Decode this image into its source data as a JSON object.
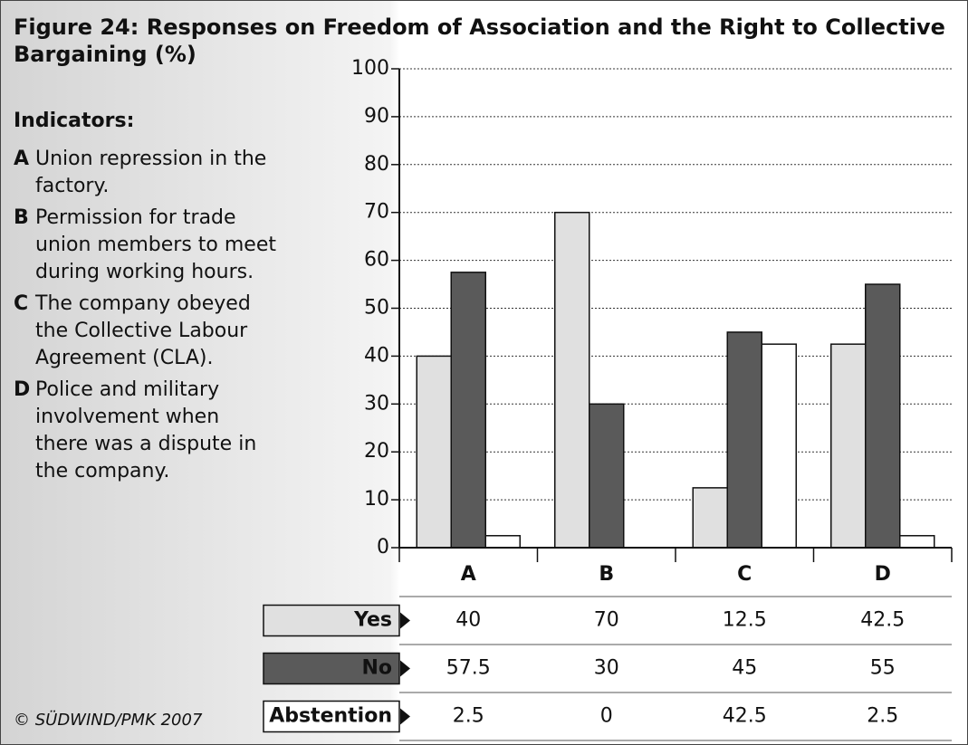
{
  "chart_data": {
    "type": "bar",
    "title": "Figure 24: Responses on Freedom of Association and the Right to Collective Bargaining (%)",
    "categories": [
      "A",
      "B",
      "C",
      "D"
    ],
    "series": [
      {
        "name": "Yes",
        "color": "#e0e0e0",
        "values": [
          40,
          70,
          12.5,
          42.5
        ]
      },
      {
        "name": "No",
        "color": "#5a5a5a",
        "values": [
          57.5,
          30,
          45,
          55
        ]
      },
      {
        "name": "Abstention",
        "color": "#ffffff",
        "values": [
          2.5,
          0,
          42.5,
          2.5
        ]
      }
    ],
    "ylim": [
      0,
      100
    ],
    "yticks": [
      0,
      10,
      20,
      30,
      40,
      50,
      60,
      70,
      80,
      90,
      100
    ],
    "grid": true
  },
  "indicators": {
    "heading": "Indicators:",
    "items": [
      {
        "letter": "A",
        "text": "Union repression in the factory."
      },
      {
        "letter": "B",
        "text": "Permission for trade union members to meet during working hours."
      },
      {
        "letter": "C",
        "text": "The company obeyed the Collective Labour Agreement (CLA)."
      },
      {
        "letter": "D",
        "text": "Police and military involvement when there was a dispute in the company."
      }
    ]
  },
  "copyright": "© SÜDWIND/PMK 2007"
}
